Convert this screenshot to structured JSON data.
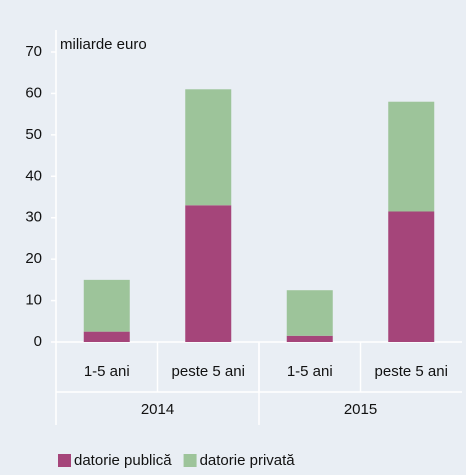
{
  "chart_data": {
    "type": "bar",
    "stacked": true,
    "y_label": "miliarde euro",
    "categories": [
      "1-5 ani",
      "peste 5 ani",
      "1-5 ani",
      "peste 5 ani"
    ],
    "groups": [
      "2014",
      "2015"
    ],
    "series": [
      {
        "name": "datorie publică",
        "color": "#a5457a",
        "values": [
          2.5,
          33,
          1.5,
          31.5
        ]
      },
      {
        "name": "datorie privată",
        "color": "#9dc49a",
        "values": [
          12.5,
          28,
          11,
          26.5
        ]
      }
    ],
    "ylim": [
      0,
      70
    ],
    "yticks": [
      0,
      10,
      20,
      30,
      40,
      50,
      60,
      70
    ],
    "grid": false,
    "legend": "bottom"
  }
}
